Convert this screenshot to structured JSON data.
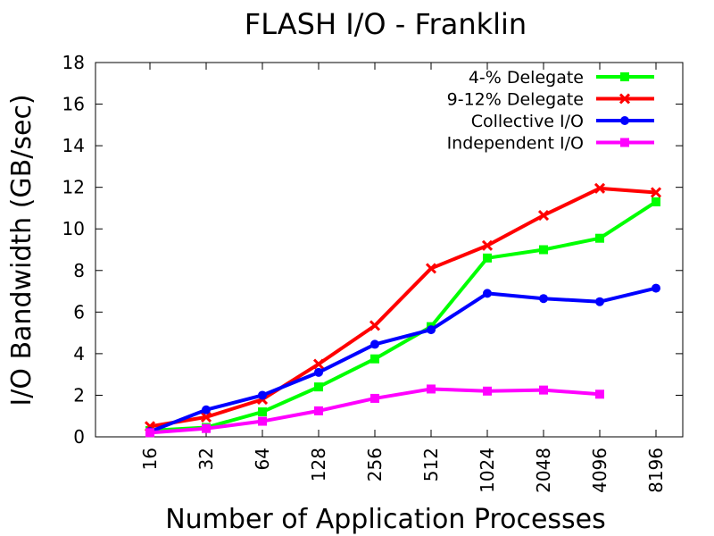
{
  "chart_data": {
    "type": "line",
    "title": "FLASH I/O -  Franklin",
    "xlabel": "Number of Application Processes",
    "ylabel": "I/O Bandwidth (GB/sec)",
    "categories": [
      "16",
      "32",
      "64",
      "128",
      "256",
      "512",
      "1024",
      "2048",
      "4096",
      "8196"
    ],
    "ylim": [
      0,
      18
    ],
    "yticks": [
      "0",
      "2",
      "4",
      "6",
      "8",
      "10",
      "12",
      "14",
      "16",
      "18"
    ],
    "grid": false,
    "legend_position": "top-right",
    "series": [
      {
        "name": "4-% Delegate",
        "color": "#00ff00",
        "marker": "square",
        "values": [
          0.3,
          0.45,
          1.2,
          2.4,
          3.75,
          5.3,
          8.6,
          9.0,
          9.55,
          11.3
        ]
      },
      {
        "name": "9-12% Delegate",
        "color": "#ff0000",
        "marker": "x",
        "values": [
          0.5,
          0.95,
          1.8,
          3.5,
          5.35,
          8.1,
          9.2,
          10.65,
          11.95,
          11.75
        ]
      },
      {
        "name": "Collective I/O",
        "color": "#0000ff",
        "marker": "circle",
        "values": [
          0.25,
          1.3,
          2.0,
          3.1,
          4.45,
          5.15,
          6.9,
          6.65,
          6.5,
          7.15
        ]
      },
      {
        "name": "Independent I/O",
        "color": "#ff00ff",
        "marker": "square",
        "values": [
          0.2,
          0.4,
          0.75,
          1.25,
          1.85,
          2.3,
          2.2,
          2.25,
          2.05,
          null
        ]
      }
    ]
  }
}
